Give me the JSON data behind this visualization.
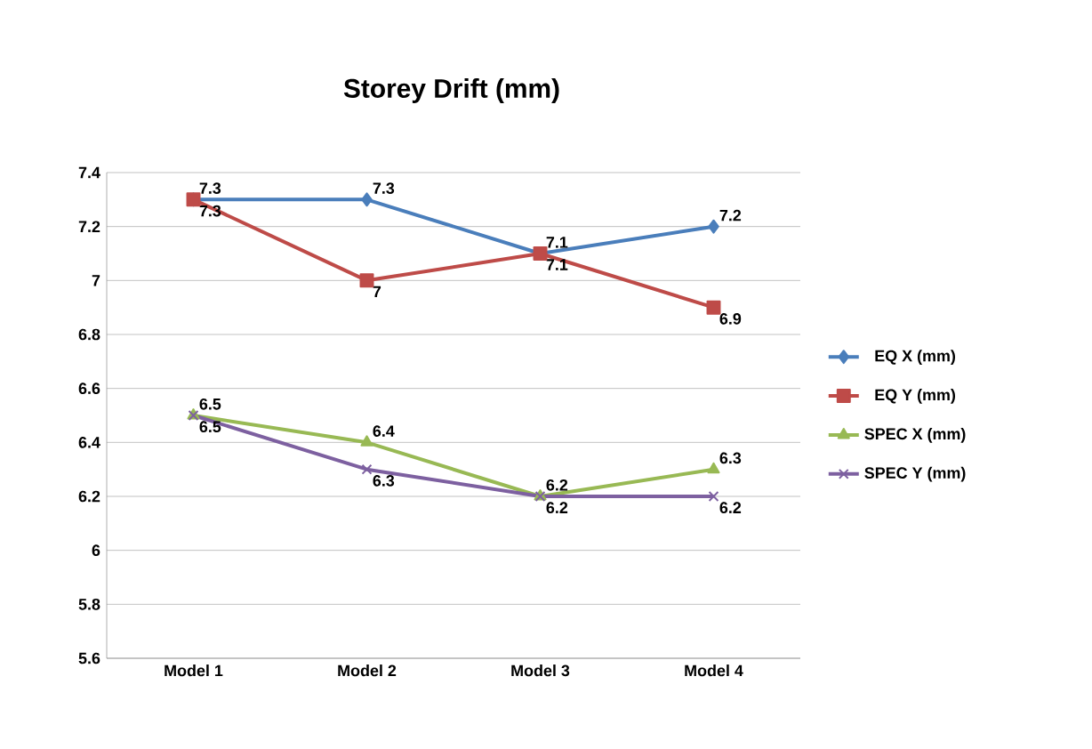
{
  "chart_data": {
    "type": "line",
    "title": "Storey Drift (mm)",
    "categories": [
      "Model 1",
      "Model 2",
      "Model 3",
      "Model 4"
    ],
    "series": [
      {
        "name": "EQ X (mm)",
        "color": "#4a7ebb",
        "marker": "diamond",
        "values": [
          7.3,
          7.3,
          7.1,
          7.2
        ]
      },
      {
        "name": "EQ Y (mm)",
        "color": "#be4b48",
        "marker": "square",
        "values": [
          7.3,
          7,
          7.1,
          6.9
        ]
      },
      {
        "name": "SPEC X (mm)",
        "color": "#98b954",
        "marker": "triangle",
        "values": [
          6.5,
          6.4,
          6.2,
          6.3
        ]
      },
      {
        "name": "SPEC Y (mm)",
        "color": "#7d60a0",
        "marker": "cross",
        "values": [
          6.5,
          6.3,
          6.2,
          6.2
        ]
      }
    ],
    "ylim": [
      5.6,
      7.4
    ],
    "yticks": [
      5.6,
      5.8,
      6,
      6.2,
      6.4,
      6.6,
      6.8,
      7,
      7.2,
      7.4
    ],
    "grid": "y",
    "legend": "right",
    "data_labels": true,
    "line_style": "solid"
  }
}
